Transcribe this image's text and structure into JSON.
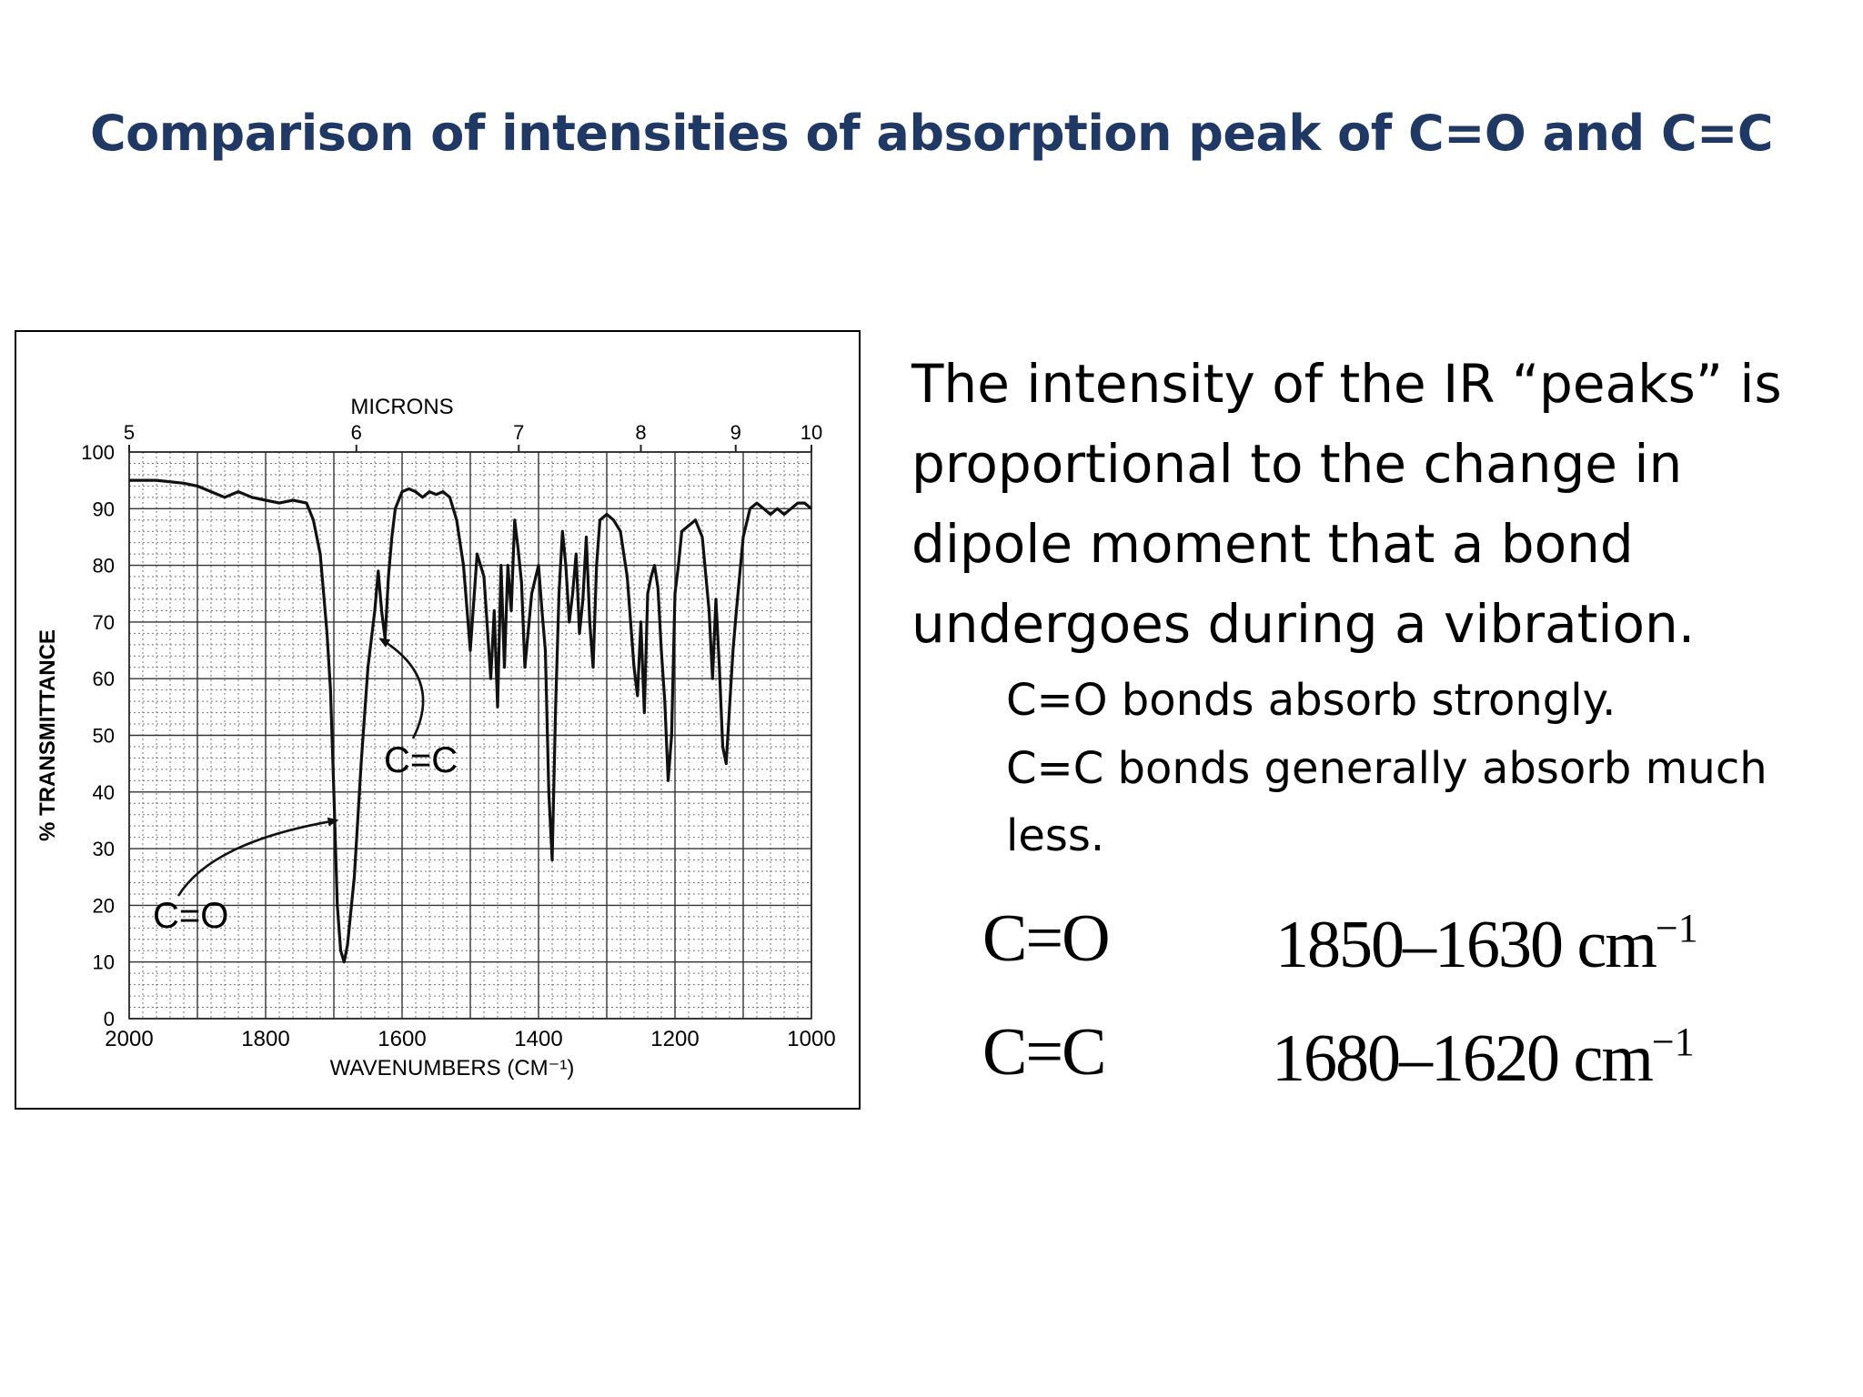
{
  "slide": {
    "title": "Comparison of intensities of absorption peak of C=O and C=C",
    "body_text": "The intensity of the IR “peaks” is proportional to the change in dipole moment that a bond undergoes during a vibration.",
    "bullets": [
      "C=O bonds absorb strongly.",
      "C=C bonds generally absorb much less."
    ],
    "formulas": [
      {
        "bond": "C=O",
        "range": "1850–1630 cm",
        "exp": "−1"
      },
      {
        "bond": "C=C",
        "range": "1680–1620 cm",
        "exp": "−1"
      }
    ]
  },
  "chart_data": {
    "type": "line",
    "title": "",
    "xlabel": "WAVENUMBERS (CM⁻¹)",
    "ylabel": "% TRANSMITTANCE",
    "top_axis_label": "MICRONS",
    "xlim": [
      2000,
      1000
    ],
    "ylim": [
      0,
      100
    ],
    "x_ticks": [
      2000,
      1800,
      1600,
      1400,
      1200,
      1000
    ],
    "y_ticks": [
      0,
      10,
      20,
      30,
      40,
      50,
      60,
      70,
      80,
      90,
      100
    ],
    "top_ticks": [
      {
        "label": "5",
        "wavenumber": 2000
      },
      {
        "label": "6",
        "wavenumber": 1667
      },
      {
        "label": "7",
        "wavenumber": 1429
      },
      {
        "label": "8",
        "wavenumber": 1250
      },
      {
        "label": "9",
        "wavenumber": 1111
      },
      {
        "label": "10",
        "wavenumber": 1000
      }
    ],
    "grid": true,
    "annotations": [
      {
        "text": "C=O",
        "x": 1690,
        "y": 10
      },
      {
        "text": "C=C",
        "x": 1640,
        "y": 68
      }
    ],
    "series": [
      {
        "x": [
          2000,
          1960,
          1920,
          1900,
          1880,
          1860,
          1840,
          1820,
          1800,
          1780,
          1760,
          1740,
          1730,
          1720,
          1715,
          1710,
          1705,
          1700,
          1695,
          1690,
          1685,
          1680,
          1670,
          1660,
          1650,
          1640,
          1635,
          1630,
          1625,
          1620,
          1615,
          1610,
          1600,
          1590,
          1580,
          1570,
          1560,
          1550,
          1540,
          1530,
          1520,
          1510,
          1500,
          1490,
          1480,
          1470,
          1465,
          1460,
          1455,
          1450,
          1445,
          1440,
          1435,
          1430,
          1425,
          1420,
          1410,
          1400,
          1395,
          1390,
          1385,
          1380,
          1375,
          1370,
          1365,
          1360,
          1355,
          1350,
          1345,
          1340,
          1335,
          1330,
          1325,
          1320,
          1315,
          1310,
          1300,
          1290,
          1280,
          1270,
          1260,
          1255,
          1250,
          1245,
          1240,
          1235,
          1230,
          1225,
          1220,
          1215,
          1210,
          1205,
          1200,
          1195,
          1190,
          1180,
          1170,
          1160,
          1150,
          1145,
          1140,
          1135,
          1130,
          1125,
          1120,
          1115,
          1110,
          1100,
          1090,
          1080,
          1070,
          1060,
          1050,
          1040,
          1030,
          1020,
          1010,
          1000
        ],
        "y": [
          95,
          95,
          94.5,
          94,
          93,
          92,
          93,
          92,
          91.5,
          91,
          91.5,
          91,
          88,
          82,
          75,
          68,
          58,
          40,
          20,
          12,
          10,
          13,
          25,
          45,
          62,
          72,
          79,
          72,
          67,
          78,
          85,
          90,
          93,
          93.5,
          93,
          92,
          93,
          92.5,
          93,
          92,
          88,
          80,
          65,
          82,
          78,
          60,
          72,
          55,
          80,
          62,
          80,
          72,
          88,
          83,
          77,
          62,
          75,
          80,
          72,
          65,
          40,
          28,
          55,
          75,
          86,
          80,
          70,
          75,
          82,
          68,
          74,
          85,
          70,
          62,
          80,
          88,
          89,
          88,
          86,
          78,
          62,
          57,
          70,
          54,
          75,
          78,
          80,
          76,
          65,
          56,
          42,
          50,
          75,
          80,
          86,
          87,
          88,
          85,
          72,
          60,
          74,
          62,
          48,
          45,
          55,
          65,
          72,
          85,
          90,
          91,
          90,
          89,
          90,
          89,
          90,
          91,
          91,
          90
        ]
      }
    ]
  }
}
